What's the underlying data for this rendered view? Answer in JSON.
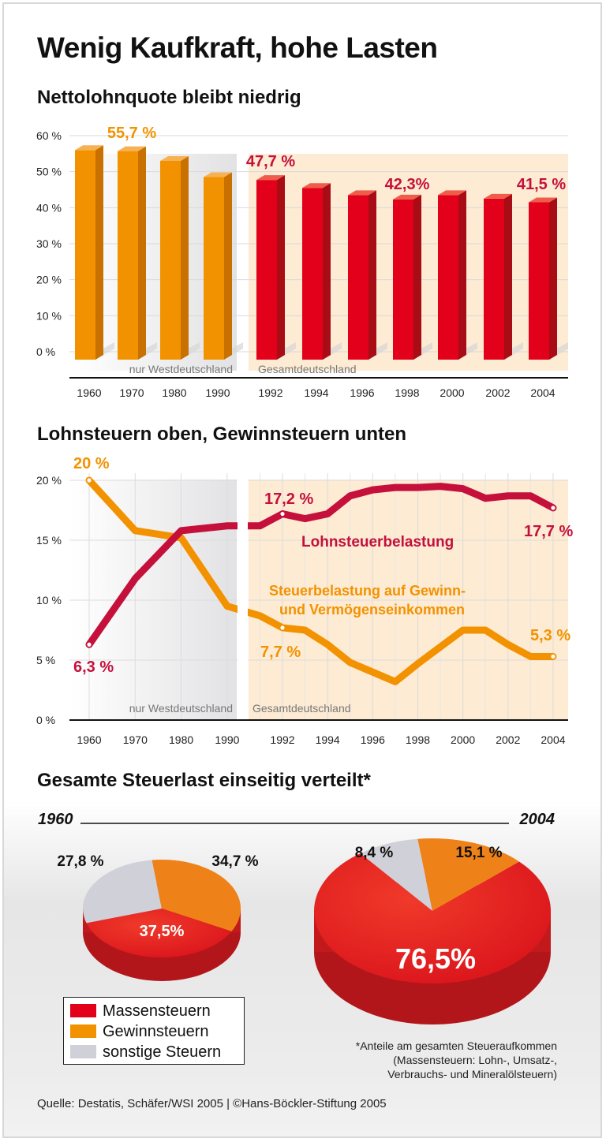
{
  "title": "Wenig Kaufkraft, hohe Lasten",
  "colors": {
    "orange": "#f39200",
    "red": "#e3001b",
    "dark_red": "#c4103a",
    "gray_slice": "#d0d0d8",
    "beige": "#fdebd3"
  },
  "chart_data": [
    {
      "type": "bar",
      "title": "Nettolohnquote bleibt niedrig",
      "categories": [
        "1960",
        "1970",
        "1980",
        "1990",
        "1992",
        "1994",
        "1996",
        "1998",
        "2000",
        "2002",
        "2004"
      ],
      "values": [
        56.0,
        55.7,
        53.0,
        48.5,
        47.7,
        45.5,
        43.5,
        42.3,
        43.5,
        42.5,
        41.5
      ],
      "colors_by_region": [
        "orange",
        "orange",
        "orange",
        "orange",
        "red",
        "red",
        "red",
        "red",
        "red",
        "red",
        "red"
      ],
      "ylim": [
        0,
        60
      ],
      "yticks": [
        "0 %",
        "10 %",
        "20 %",
        "30 %",
        "40 %",
        "50 %",
        "60 %"
      ],
      "data_labels": [
        {
          "index": 1,
          "text": "55,7 %"
        },
        {
          "index": 4,
          "text": "47,7 %"
        },
        {
          "index": 7,
          "text": "42,3%"
        },
        {
          "index": 10,
          "text": "41,5 %"
        }
      ],
      "regions": [
        "nur Westdeutschland",
        "Gesamtdeutschland"
      ],
      "grid": true
    },
    {
      "type": "line",
      "title": "Lohnsteuern oben, Gewinnsteuern unten",
      "x": [
        1960,
        1970,
        1980,
        1990,
        1991,
        1992,
        1993,
        1994,
        1995,
        1996,
        1997,
        1998,
        1999,
        2000,
        2001,
        2002,
        2003,
        2004
      ],
      "xticks": [
        "1960",
        "1970",
        "1980",
        "1990",
        "1992",
        "1994",
        "1996",
        "1998",
        "2000",
        "2002",
        "2004"
      ],
      "ylim": [
        0,
        20
      ],
      "yticks": [
        "0 %",
        "5 %",
        "10 %",
        "15 %",
        "20 %"
      ],
      "series": [
        {
          "name": "Lohnsteuerbelastung",
          "color": "#c4103a",
          "values": [
            6.3,
            11.8,
            15.8,
            16.2,
            16.2,
            17.2,
            16.8,
            17.2,
            18.7,
            19.2,
            19.4,
            19.4,
            19.5,
            19.3,
            18.5,
            18.7,
            18.7,
            17.7
          ]
        },
        {
          "name": "Steuerbelastung auf Gewinn- und Vermögenseinkommen",
          "name_lines": [
            "Steuerbelastung auf Gewinn-",
            "und Vermögenseinkommen"
          ],
          "color": "#f39200",
          "values": [
            20.0,
            15.8,
            15.2,
            9.5,
            8.7,
            7.7,
            7.5,
            6.3,
            4.8,
            4.0,
            3.2,
            4.7,
            6.1,
            7.5,
            7.5,
            6.3,
            5.3,
            5.3
          ]
        }
      ],
      "data_labels": {
        "l1960": "6,3 %",
        "l1992": "17,2 %",
        "l2004": "17,7 %",
        "g1960": "20 %",
        "g1992": "7,7 %",
        "g2004": "5,3 %"
      },
      "regions": [
        "nur Westdeutschland",
        "Gesamtdeutschland"
      ],
      "grid": true
    },
    {
      "type": "pie",
      "title": "Gesamte Steuerlast einseitig verteilt*",
      "years": [
        "1960",
        "2004"
      ],
      "legend": [
        "Massensteuern",
        "Gewinnsteuern",
        "sonstige Steuern"
      ],
      "pies": [
        {
          "year": "1960",
          "slices": [
            {
              "name": "Gewinnsteuern",
              "value": 34.7,
              "label": "34,7 %"
            },
            {
              "name": "Massensteuern",
              "value": 37.5,
              "label": "37,5%"
            },
            {
              "name": "sonstige Steuern",
              "value": 27.8,
              "label": "27,8 %"
            }
          ]
        },
        {
          "year": "2004",
          "slices": [
            {
              "name": "Gewinnsteuern",
              "value": 15.1,
              "label": "15,1 %"
            },
            {
              "name": "Massensteuern",
              "value": 76.5,
              "label": "76,5%"
            },
            {
              "name": "sonstige Steuern",
              "value": 8.4,
              "label": "8,4 %"
            }
          ]
        }
      ]
    }
  ],
  "footnote": [
    "*Anteile am gesamten Steueraufkommen",
    "(Massensteuern: Lohn-, Umsatz-,",
    "Verbrauchs- und Mineralölsteuern)"
  ],
  "source": "Quelle: Destatis, Schäfer/WSI 2005 | ©Hans-Böckler-Stiftung 2005"
}
